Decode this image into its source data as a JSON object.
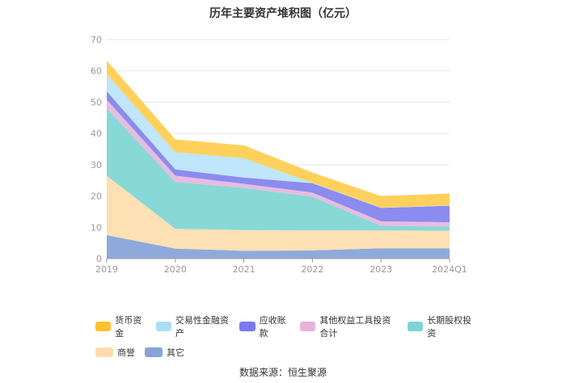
{
  "chart_data": {
    "type": "area",
    "stacked": true,
    "title": "历年主要资产堆积图（亿元）",
    "categories": [
      "2019",
      "2020",
      "2021",
      "2022",
      "2023",
      "2024Q1"
    ],
    "ylim": [
      0,
      70
    ],
    "yticks": [
      0,
      10,
      20,
      30,
      40,
      50,
      60,
      70
    ],
    "grid": true,
    "series": [
      {
        "name": "其它",
        "color": "#8eaadb",
        "values": [
          7.5,
          3.2,
          2.5,
          2.6,
          3.3,
          3.3
        ]
      },
      {
        "name": "商誉",
        "color": "#fde0b4",
        "values": [
          19.0,
          6.3,
          6.6,
          6.4,
          5.7,
          5.6
        ]
      },
      {
        "name": "长期股权投资",
        "color": "#88d8d8",
        "values": [
          21.5,
          15.0,
          13.5,
          10.8,
          1.5,
          1.3
        ]
      },
      {
        "name": "其他权益工具投资合计",
        "color": "#e8bcdf",
        "values": [
          2.8,
          2.0,
          1.3,
          1.3,
          1.4,
          1.4
        ]
      },
      {
        "name": "应收账款",
        "color": "#8b8bf0",
        "values": [
          2.7,
          2.0,
          2.0,
          3.0,
          4.3,
          5.3
        ]
      },
      {
        "name": "交易性金融资产",
        "color": "#bfe6fa",
        "values": [
          5.5,
          5.5,
          6.2,
          0.1,
          0.1,
          0.1
        ]
      },
      {
        "name": "货币资金",
        "color": "#ffd15c",
        "values": [
          4.3,
          4.1,
          4.1,
          3.3,
          3.7,
          3.8
        ]
      }
    ]
  },
  "legend": {
    "row1": [
      {
        "label": "货币资金",
        "color": "#fcc12e"
      },
      {
        "label": "交易性金融资产",
        "color": "#a9def7"
      },
      {
        "label": "应收账款",
        "color": "#7a7af0"
      },
      {
        "label": "其他权益工具投资合计",
        "color": "#e6b3dc"
      },
      {
        "label": "长期股权投资",
        "color": "#7fd3d3"
      }
    ],
    "row2": [
      {
        "label": "商誉",
        "color": "#fddcab"
      },
      {
        "label": "其它",
        "color": "#86a4d8"
      }
    ]
  },
  "source": "数据来源：恒生聚源"
}
